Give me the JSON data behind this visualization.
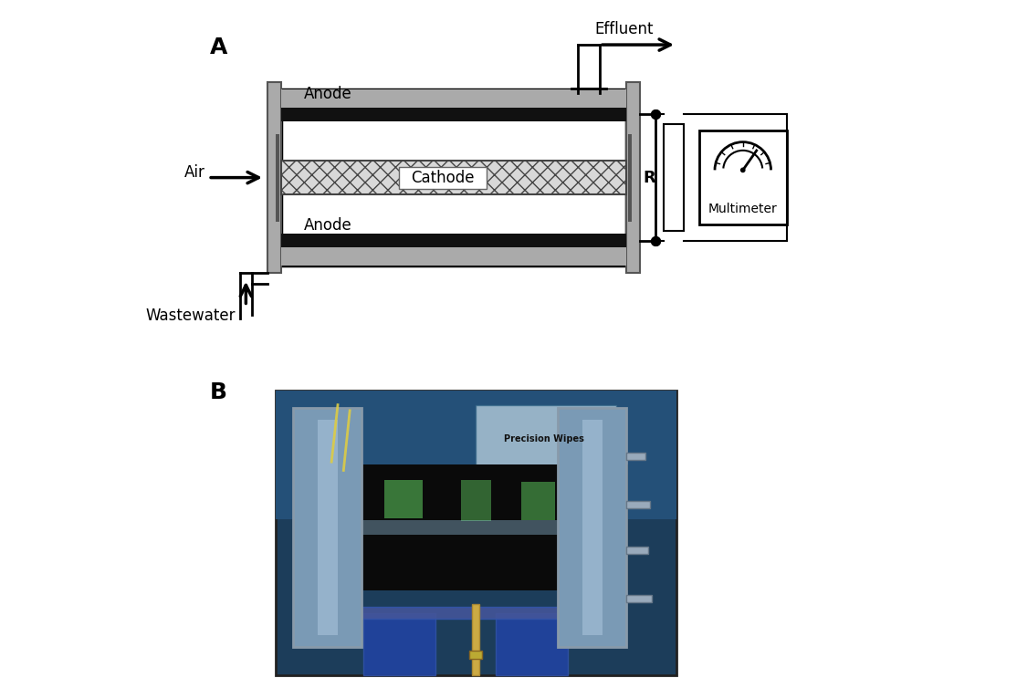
{
  "background_color": "#ffffff",
  "panel_A_label": "A",
  "panel_B_label": "B",
  "label_fontsize": 18,
  "label_fontweight": "bold",
  "schematic": {
    "anode_label": "Anode",
    "cathode_label": "Cathode",
    "air_label": "Air",
    "wastewater_label": "Wastewater",
    "effluent_label": "Effluent",
    "resistor_label": "R",
    "multimeter_label": "Multimeter",
    "cap_color": "#aaaaaa",
    "cap_color_dark": "#888888",
    "anode_color": "#111111",
    "cathode_bg": "#cccccc",
    "white": "#ffffff",
    "black": "#000000"
  }
}
